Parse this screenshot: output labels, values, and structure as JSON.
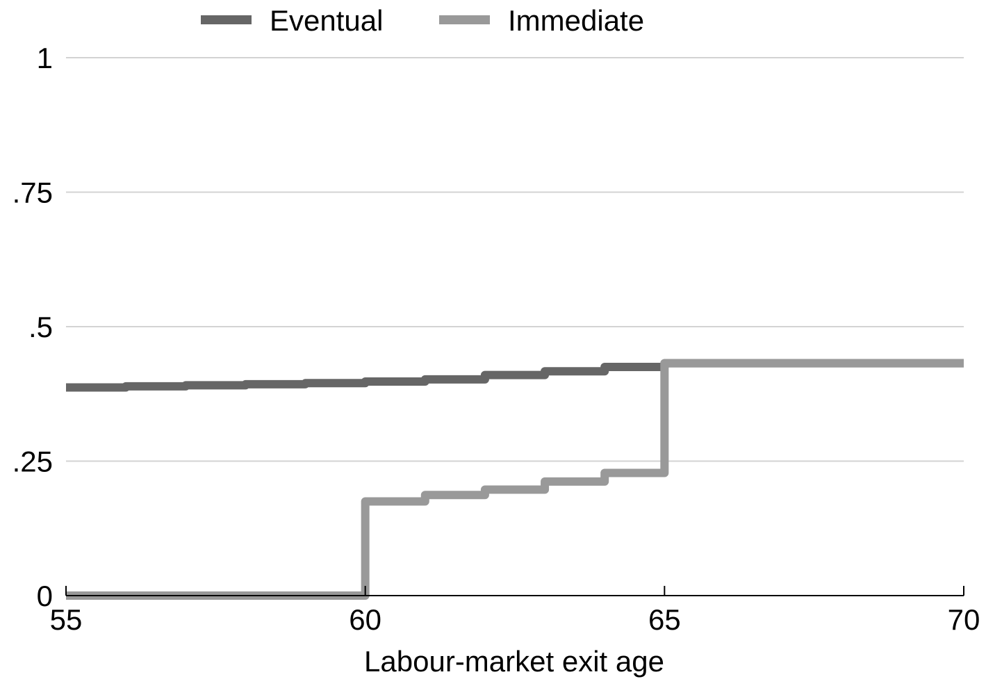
{
  "chart_data": {
    "type": "line",
    "step": true,
    "title": "",
    "xlabel": "Labour-market exit age",
    "ylabel": "",
    "xlim": [
      55,
      70
    ],
    "ylim": [
      0,
      1
    ],
    "x_ticks": [
      55,
      60,
      65,
      70
    ],
    "x_tick_labels": [
      "55",
      "60",
      "65",
      "70"
    ],
    "y_ticks": [
      0,
      0.25,
      0.5,
      0.75,
      1
    ],
    "y_tick_labels": [
      "0",
      ".25",
      ".5",
      ".75",
      "1"
    ],
    "grid": "horizontal",
    "legend_position": "top",
    "series": [
      {
        "name": "Eventual",
        "color": "#666666",
        "steps": [
          [
            55,
            0.387
          ],
          [
            56,
            0.389
          ],
          [
            57,
            0.391
          ],
          [
            58,
            0.393
          ],
          [
            59,
            0.395
          ],
          [
            60,
            0.398
          ],
          [
            61,
            0.402
          ],
          [
            62,
            0.41
          ],
          [
            63,
            0.417
          ],
          [
            64,
            0.425
          ],
          [
            65,
            0.432
          ],
          [
            70,
            0.432
          ]
        ]
      },
      {
        "name": "Immediate",
        "color": "#999999",
        "steps": [
          [
            55,
            0.0
          ],
          [
            60,
            0.175
          ],
          [
            61,
            0.187
          ],
          [
            62,
            0.197
          ],
          [
            63,
            0.212
          ],
          [
            64,
            0.228
          ],
          [
            65,
            0.432
          ],
          [
            70,
            0.432
          ]
        ]
      }
    ]
  }
}
